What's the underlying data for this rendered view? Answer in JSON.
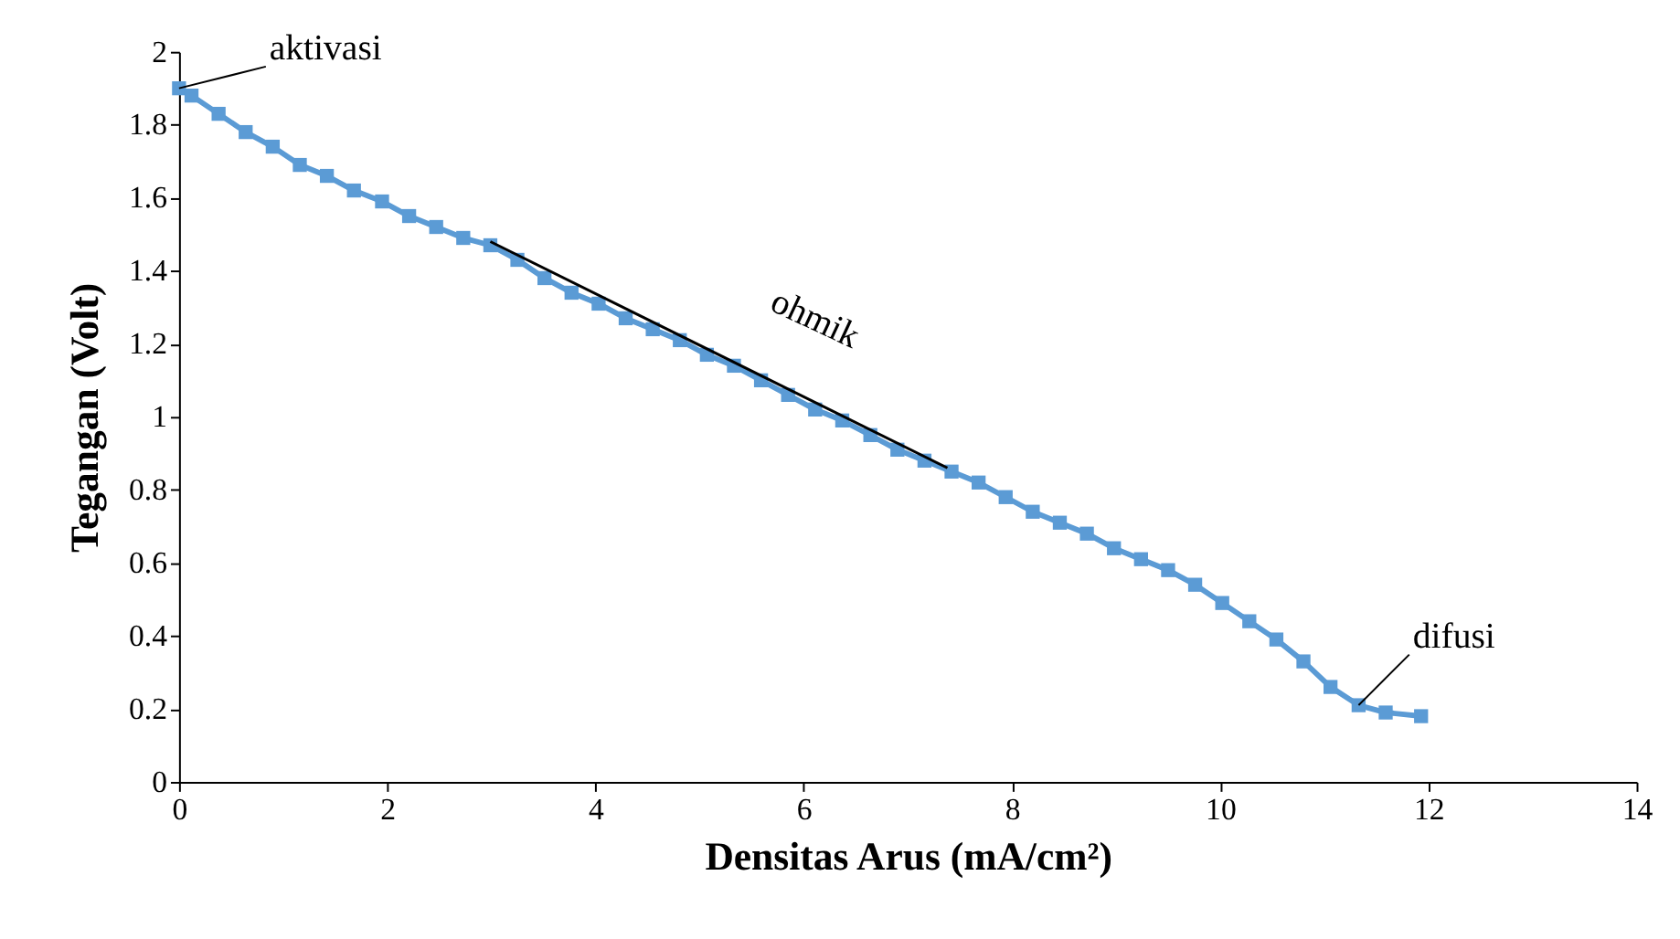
{
  "chart_data": {
    "type": "line",
    "xlabel": "Densitas Arus (mA/cm²)",
    "ylabel": "Tegangan (Volt)",
    "x": [
      0,
      0.12,
      0.38,
      0.64,
      0.9,
      1.16,
      1.42,
      1.68,
      1.95,
      2.21,
      2.47,
      2.73,
      2.99,
      3.25,
      3.51,
      3.77,
      4.03,
      4.29,
      4.55,
      4.81,
      5.07,
      5.33,
      5.59,
      5.85,
      6.11,
      6.37,
      6.64,
      6.9,
      7.16,
      7.42,
      7.68,
      7.94,
      8.2,
      8.46,
      8.72,
      8.98,
      9.24,
      9.5,
      9.76,
      10.02,
      10.28,
      10.54,
      10.8,
      11.06,
      11.33,
      11.59,
      11.93
    ],
    "series": [
      {
        "color": "#5b9bd5",
        "marker": "square",
        "values": [
          1.9,
          1.88,
          1.83,
          1.78,
          1.74,
          1.69,
          1.66,
          1.62,
          1.59,
          1.55,
          1.52,
          1.49,
          1.47,
          1.43,
          1.38,
          1.34,
          1.31,
          1.27,
          1.24,
          1.21,
          1.17,
          1.14,
          1.1,
          1.06,
          1.02,
          0.99,
          0.95,
          0.91,
          0.88,
          0.85,
          0.82,
          0.78,
          0.74,
          0.71,
          0.68,
          0.64,
          0.61,
          0.58,
          0.54,
          0.49,
          0.44,
          0.39,
          0.33,
          0.26,
          0.21,
          0.19,
          0.18
        ]
      },
      {
        "type": "line",
        "color": "#000000",
        "marker": "none",
        "x": [
          2.99,
          7.38
        ],
        "values": [
          1.48,
          0.86
        ]
      }
    ],
    "annotations": [
      {
        "text": "aktivasi",
        "x": 0,
        "y": 1.9
      },
      {
        "text": "ohmik",
        "x": 5.5,
        "y": 1.13
      },
      {
        "text": "difusi",
        "x": 11.33,
        "y": 0.21
      }
    ],
    "xlim": [
      0,
      14
    ],
    "xticks": [
      0,
      2,
      4,
      6,
      8,
      10,
      12,
      14
    ],
    "ylim": [
      0,
      2
    ],
    "yticks": [
      0,
      0.2,
      0.4,
      0.6,
      0.8,
      1,
      1.2,
      1.4,
      1.6,
      1.8,
      2
    ],
    "grid": false
  }
}
